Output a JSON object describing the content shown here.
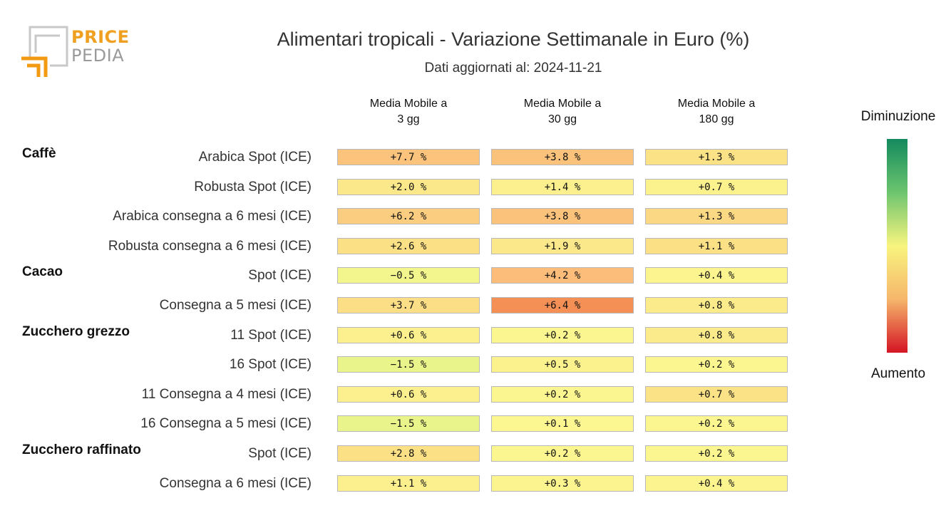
{
  "logo": {
    "word1": "PRICE",
    "word2": "PEDIA"
  },
  "title": "Alimentari tropicali - Variazione Settimanale in Euro (%)",
  "subtitle": "Dati aggiornati al: 2024-11-21",
  "legend": {
    "top": "Diminuzione",
    "bottom": "Aumento",
    "colors": [
      "#138a5e",
      "#6cc56e",
      "#f8f47f",
      "#f6b66b",
      "#d41424"
    ]
  },
  "chart_data": {
    "type": "table",
    "columns": [
      "Media Mobile a\n3 gg",
      "Media Mobile a\n30 gg",
      "Media Mobile a\n180 gg"
    ],
    "rows": [
      {
        "group": "Caffè",
        "label": "Arabica Spot (ICE)",
        "values": [
          7.7,
          3.8,
          1.3
        ],
        "text": [
          "+7.7 %",
          "+3.8 %",
          "+1.3 %"
        ]
      },
      {
        "group": "",
        "label": "Robusta Spot (ICE)",
        "values": [
          2.0,
          1.4,
          0.7
        ],
        "text": [
          "+2.0 %",
          "+1.4 %",
          "+0.7 %"
        ]
      },
      {
        "group": "",
        "label": "Arabica consegna a 6 mesi (ICE)",
        "values": [
          6.2,
          3.8,
          1.3
        ],
        "text": [
          "+6.2 %",
          "+3.8 %",
          "+1.3 %"
        ]
      },
      {
        "group": "",
        "label": "Robusta consegna a 6 mesi (ICE)",
        "values": [
          2.6,
          1.9,
          1.1
        ],
        "text": [
          "+2.6 %",
          "+1.9 %",
          "+1.1 %"
        ]
      },
      {
        "group": "Cacao",
        "label": "Spot (ICE)",
        "values": [
          -0.5,
          4.2,
          0.4
        ],
        "text": [
          "−0.5 %",
          "+4.2 %",
          "+0.4 %"
        ]
      },
      {
        "group": "",
        "label": "Consegna a 5 mesi (ICE)",
        "values": [
          3.7,
          6.4,
          0.8
        ],
        "text": [
          "+3.7 %",
          "+6.4 %",
          "+0.8 %"
        ]
      },
      {
        "group": "Zucchero grezzo",
        "label": "11 Spot (ICE)",
        "values": [
          0.6,
          0.2,
          0.8
        ],
        "text": [
          "+0.6 %",
          "+0.2 %",
          "+0.8 %"
        ]
      },
      {
        "group": "",
        "label": "16 Spot (ICE)",
        "values": [
          -1.5,
          0.5,
          0.2
        ],
        "text": [
          "−1.5 %",
          "+0.5 %",
          "+0.2 %"
        ]
      },
      {
        "group": "",
        "label": "11 Consegna a 4 mesi (ICE)",
        "values": [
          0.6,
          0.2,
          0.7
        ],
        "text": [
          "+0.6 %",
          "+0.2 %",
          "+0.7 %"
        ]
      },
      {
        "group": "",
        "label": "16 Consegna a 5 mesi (ICE)",
        "values": [
          -1.5,
          0.1,
          0.2
        ],
        "text": [
          "−1.5 %",
          "+0.1 %",
          "+0.2 %"
        ]
      },
      {
        "group": "Zucchero raffinato",
        "label": "Spot (ICE)",
        "values": [
          2.8,
          0.2,
          0.2
        ],
        "text": [
          "+2.8 %",
          "+0.2 %",
          "+0.2 %"
        ]
      },
      {
        "group": "",
        "label": "Consegna a 6 mesi (ICE)",
        "values": [
          1.1,
          0.3,
          0.4
        ],
        "text": [
          "+1.1 %",
          "+0.3 %",
          "+0.4 %"
        ]
      }
    ],
    "cell_colors": [
      [
        "#fbc37c",
        "#fbc27c",
        "#fbe286"
      ],
      [
        "#fbe88a",
        "#fbf08d",
        "#fbf28e"
      ],
      [
        "#fbcd80",
        "#fbc27c",
        "#fbd984"
      ],
      [
        "#fbe086",
        "#fbe88a",
        "#fbe086"
      ],
      [
        "#f2f68d",
        "#fbbd79",
        "#fbf48f"
      ],
      [
        "#fbde86",
        "#f49055",
        "#fbeb8b"
      ],
      [
        "#fbf08d",
        "#fcf690",
        "#fbeb8b"
      ],
      [
        "#e9f58a",
        "#fbf28e",
        "#fcf690"
      ],
      [
        "#fbf08d",
        "#fcf690",
        "#fbe286"
      ],
      [
        "#e9f58a",
        "#fcf791",
        "#fcf690"
      ],
      [
        "#fbe086",
        "#fcf690",
        "#fcf690"
      ],
      [
        "#fbf08d",
        "#fcf48f",
        "#fcf48f"
      ]
    ]
  }
}
